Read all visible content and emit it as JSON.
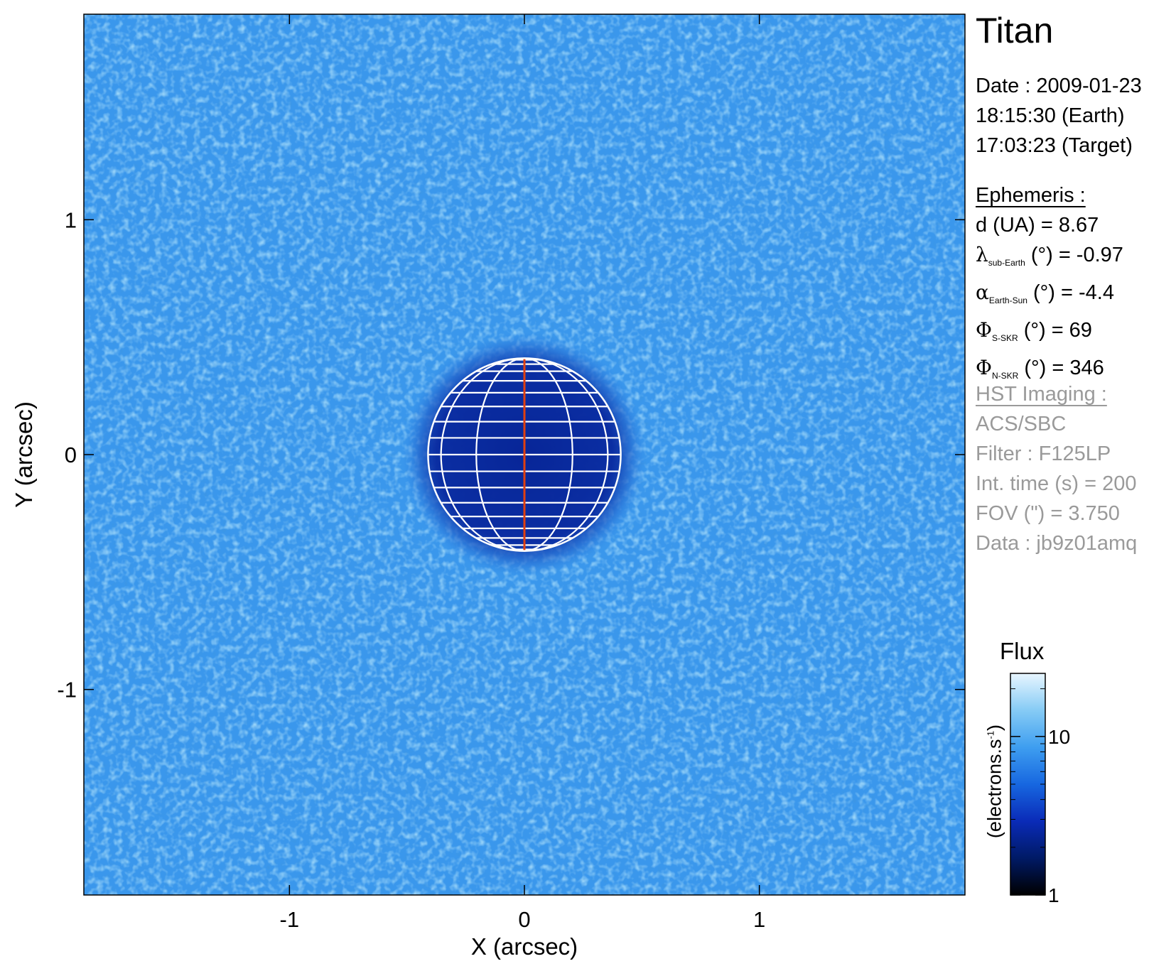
{
  "target_name": "Titan",
  "date": {
    "line1": "Date : 2009-01-23",
    "line2": "18:15:30 (Earth)",
    "line3": "17:03:23 (Target)"
  },
  "ephemeris": {
    "header": "Ephemeris :",
    "rows": [
      {
        "symbol": "",
        "sub": "",
        "label": "d (UA)",
        "value": "= 8.67"
      },
      {
        "symbol": "λ",
        "sub": "sub-Earth",
        "label": "(°)",
        "value": "= -0.97"
      },
      {
        "symbol": "α",
        "sub": "Earth-Sun",
        "label": "(°)",
        "value": "= -4.4"
      },
      {
        "symbol": "Φ",
        "sub": "S-SKR",
        "label": "(°)",
        "value": "= 69"
      },
      {
        "symbol": "Φ",
        "sub": "N-SKR",
        "label": "(°)",
        "value": "= 346"
      }
    ]
  },
  "hst": {
    "header": "HST Imaging :",
    "instrument": "ACS/SBC",
    "filter": "Filter : F125LP",
    "int_time": "Int. time (s) = 200",
    "fov": "FOV (\") = 3.750",
    "data": "Data : jb9z01amq"
  },
  "colorbar": {
    "title": "Flux",
    "unit_main": "(electrons.s",
    "unit_sup": "-1",
    "unit_close": ")",
    "scale": "log",
    "range": [
      1,
      25
    ],
    "ticks": [
      {
        "value": 1,
        "label": "1"
      },
      {
        "value": 10,
        "label": "10"
      }
    ],
    "colors": [
      "#000000",
      "#001a66",
      "#0a2bb8",
      "#1767e0",
      "#3e9ef0",
      "#86cbf5",
      "#e8f6ff"
    ]
  },
  "chart_data": {
    "type": "heatmap",
    "xlabel": "X (arcsec)",
    "ylabel": "Y (arcsec)",
    "xlim": [
      -1.875,
      1.875
    ],
    "ylim": [
      -1.875,
      1.875
    ],
    "x_ticks": [
      {
        "value": -1,
        "label": "-1"
      },
      {
        "value": 0,
        "label": "0"
      },
      {
        "value": 1,
        "label": "1"
      }
    ],
    "y_ticks": [
      {
        "value": -1,
        "label": "-1"
      },
      {
        "value": 0,
        "label": "0"
      },
      {
        "value": 1,
        "label": "1"
      }
    ],
    "background_flux": 14,
    "disk_flux": 3,
    "disk_center": [
      0,
      0
    ],
    "disk_radius_arcsec": 0.41,
    "halo_radius_arcsec": 0.52,
    "grid_latitudes_deg": [
      -80,
      -70,
      -60,
      -50,
      -40,
      -30,
      -20,
      -10,
      0,
      10,
      20,
      30,
      40,
      50,
      60,
      70,
      80
    ],
    "grid_longitudes_deg": [
      -60,
      -30,
      0,
      30,
      60
    ],
    "central_meridian_color": "#e04010",
    "grid_color": "#ffffff"
  }
}
